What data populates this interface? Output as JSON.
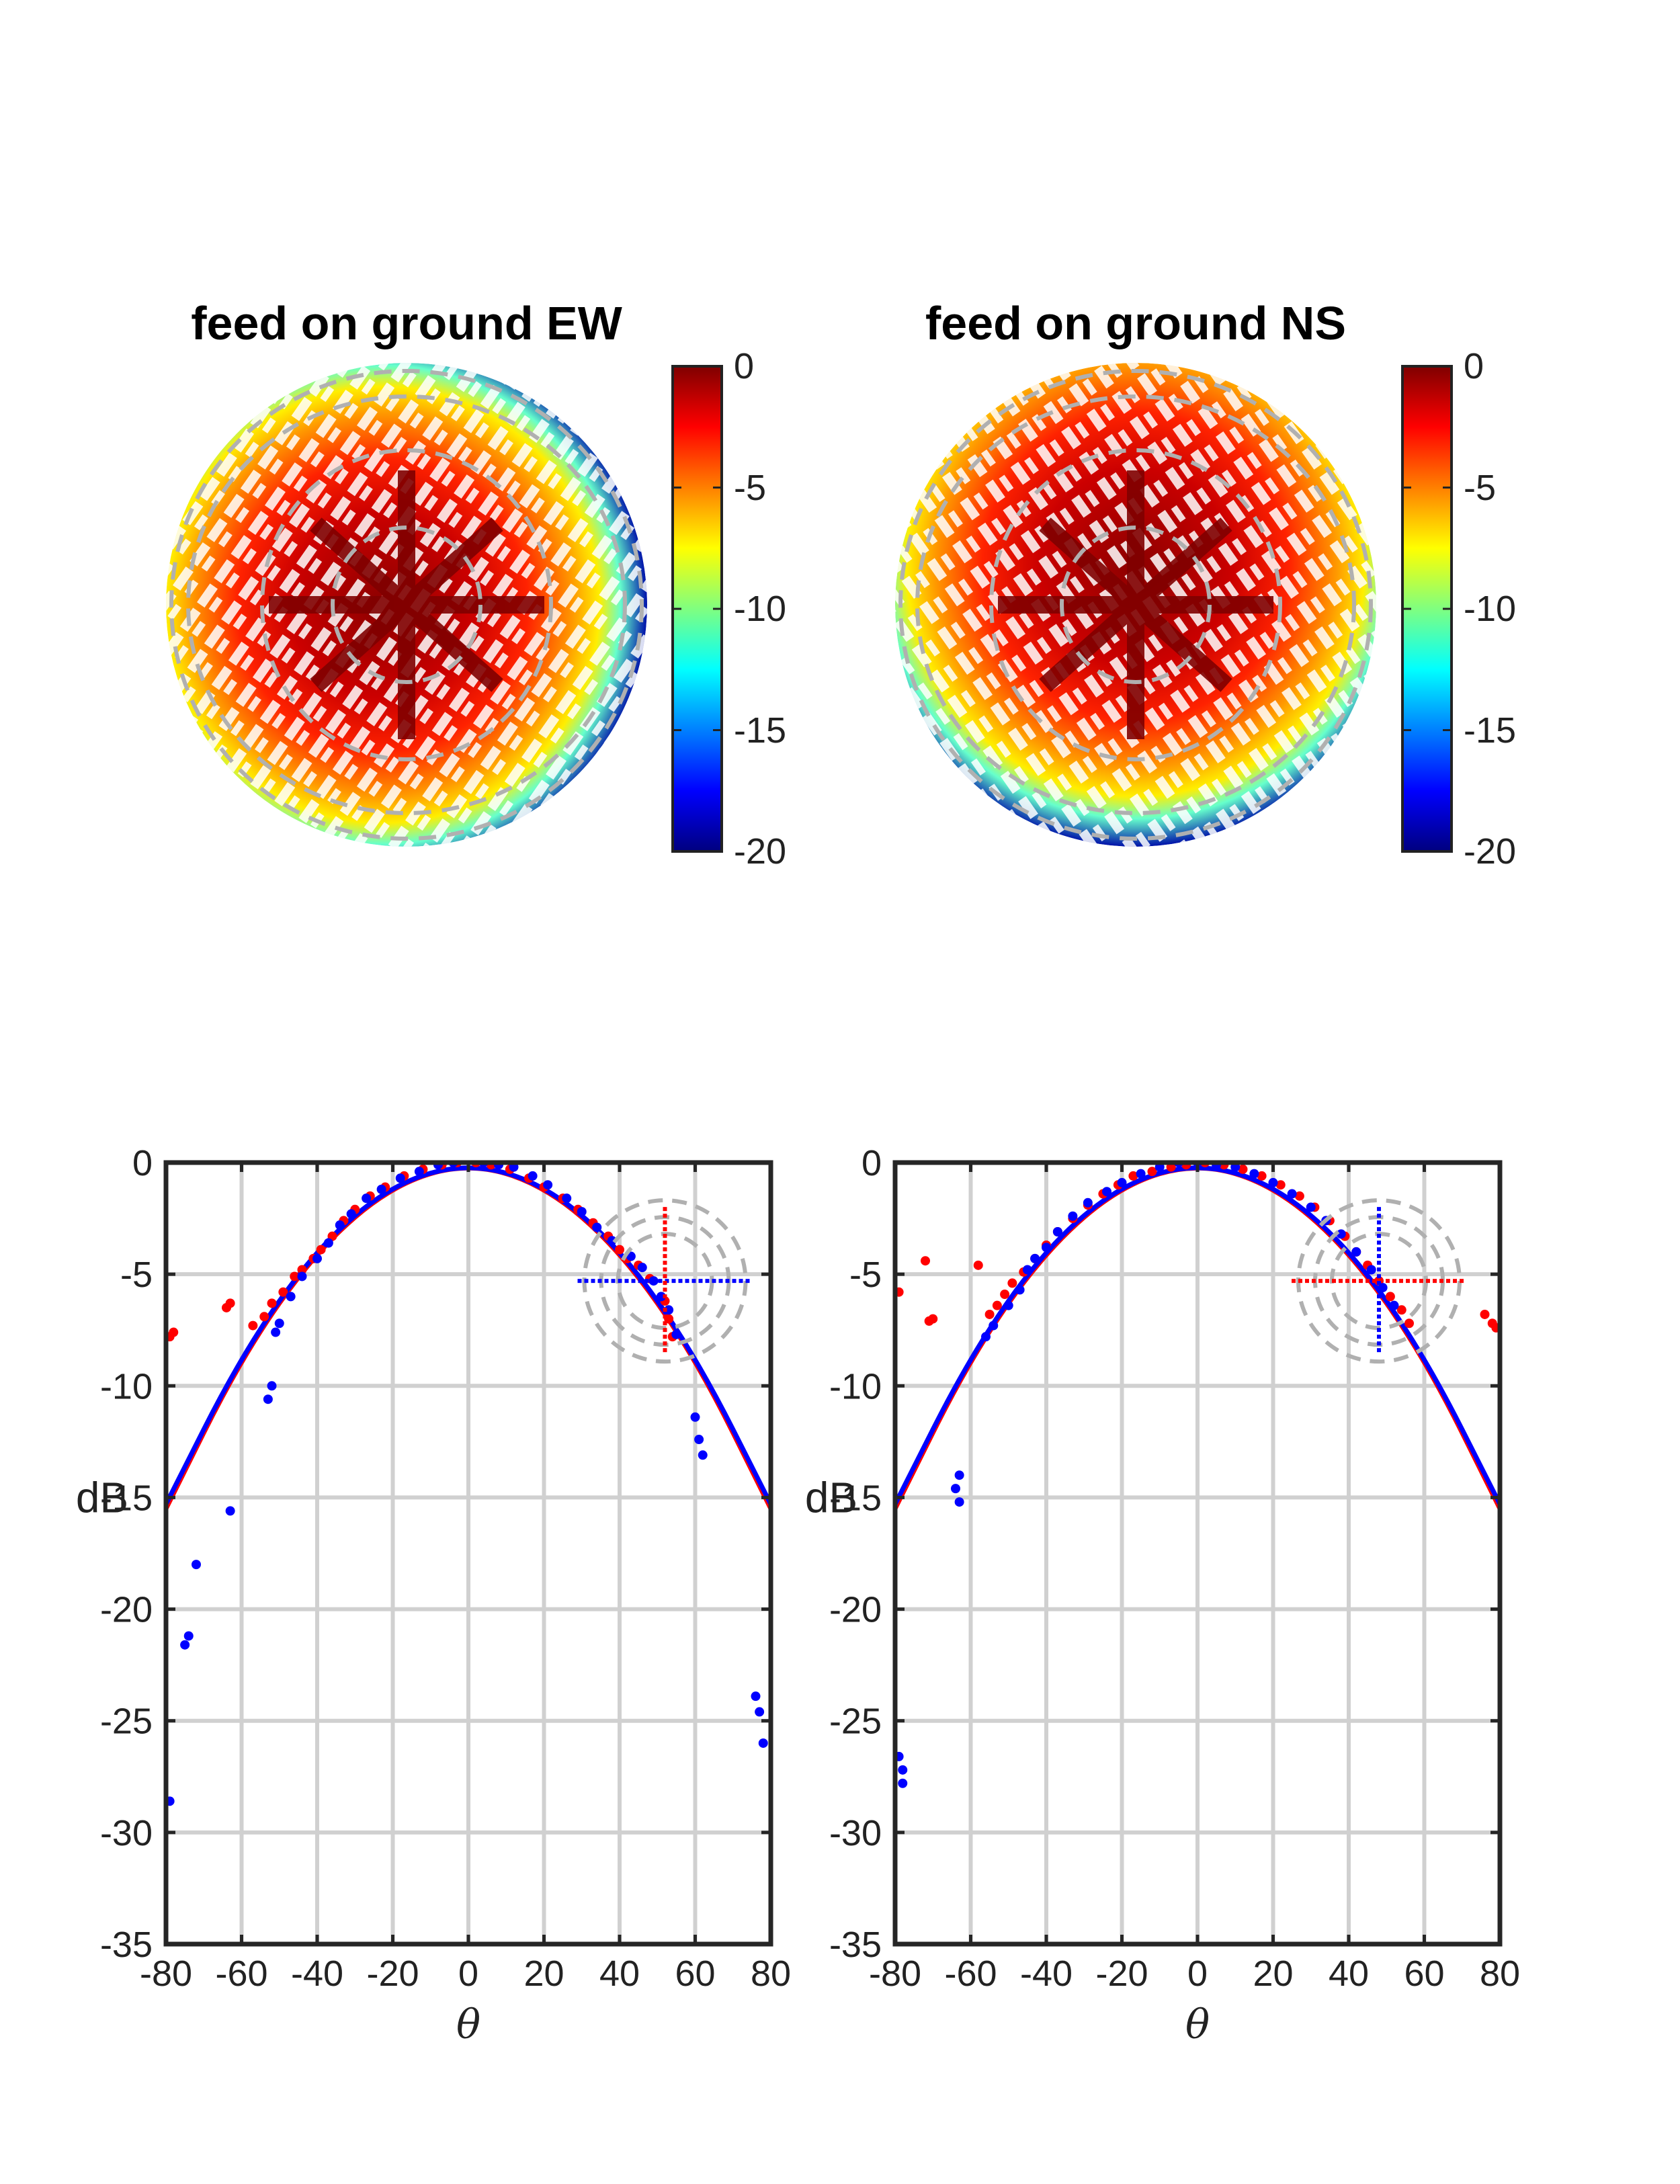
{
  "chart_data": [
    {
      "type": "heatmap",
      "panel": "top-left",
      "title": "feed on ground EW",
      "colorbar": {
        "colormap": "jet",
        "range": [
          -20,
          0
        ],
        "ticks": [
          "0",
          "-5",
          "-10",
          "-15",
          "-20"
        ]
      },
      "hotspot": "central cross-shaped band near 0 dB",
      "low_edge": "left-east"
    },
    {
      "type": "heatmap",
      "panel": "top-right",
      "title": "feed on ground NS",
      "colorbar": {
        "colormap": "jet",
        "range": [
          -20,
          0
        ],
        "ticks": [
          "0",
          "-5",
          "-10",
          "-15",
          "-20"
        ]
      },
      "hotspot": "central cross-shaped band near 0 dB",
      "low_edge": "bottom-south"
    },
    {
      "type": "scatter",
      "panel": "bottom-left",
      "xlabel": "θ",
      "ylabel": "dB",
      "xlim": [
        -80,
        80
      ],
      "ylim": [
        -35,
        0
      ],
      "xticks": [
        "-80",
        "-60",
        "-40",
        "-20",
        "0",
        "20",
        "40",
        "60",
        "80"
      ],
      "yticks": [
        "0",
        "-5",
        "-10",
        "-15",
        "-20",
        "-25",
        "-30",
        "-35"
      ],
      "grid": true,
      "fit_curves": [
        {
          "color": "#ff0000",
          "x": [
            -80,
            -60,
            -40,
            -20,
            0,
            20,
            40,
            60,
            80
          ],
          "y": [
            -15.5,
            -8.7,
            -3.9,
            -1.0,
            0,
            -1.0,
            -3.9,
            -8.7,
            -15.5
          ]
        },
        {
          "color": "#0000ff",
          "x": [
            -80,
            -60,
            -40,
            -20,
            0,
            20,
            40,
            60,
            80
          ],
          "y": [
            -15.3,
            -8.6,
            -3.8,
            -0.95,
            0,
            -0.95,
            -3.8,
            -8.6,
            -15.3
          ]
        }
      ],
      "points": [
        {
          "color": "#ff0000",
          "xy": [
            [
              -79,
              -7.8
            ],
            [
              -78,
              -7.6
            ],
            [
              -64,
              -6.5
            ],
            [
              -63,
              -6.3
            ],
            [
              -57,
              -7.3
            ],
            [
              -54,
              -6.9
            ],
            [
              -52,
              -6.3
            ],
            [
              -49,
              -5.8
            ],
            [
              -46,
              -5.1
            ],
            [
              -44,
              -4.8
            ],
            [
              -41,
              -4.3
            ],
            [
              -39,
              -3.9
            ],
            [
              -36,
              -3.3
            ],
            [
              -33,
              -2.6
            ],
            [
              -30,
              -2.1
            ],
            [
              -26,
              -1.5
            ],
            [
              -22,
              -1.1
            ],
            [
              -17,
              -0.6
            ],
            [
              -12,
              -0.3
            ],
            [
              -7,
              -0.1
            ],
            [
              -3,
              0
            ],
            [
              2,
              0
            ],
            [
              6,
              -0.1
            ],
            [
              11,
              -0.3
            ],
            [
              16,
              -0.7
            ],
            [
              20,
              -1.1
            ],
            [
              25,
              -1.6
            ],
            [
              29,
              -2.1
            ],
            [
              33,
              -2.7
            ],
            [
              37,
              -3.3
            ],
            [
              40,
              -3.9
            ],
            [
              42,
              -4.3
            ],
            [
              45,
              -4.6
            ],
            [
              48,
              -5.2
            ],
            [
              52,
              -6.2
            ],
            [
              53,
              -7.0
            ],
            [
              54,
              -7.8
            ]
          ]
        },
        {
          "color": "#0000ff",
          "xy": [
            [
              -79,
              -28.6
            ],
            [
              -72,
              -18.0
            ],
            [
              -74,
              -21.2
            ],
            [
              -75,
              -21.6
            ],
            [
              -63,
              -15.6
            ],
            [
              -52,
              -10.0
            ],
            [
              -53,
              -10.6
            ],
            [
              -51,
              -7.6
            ],
            [
              -50,
              -7.2
            ],
            [
              -47,
              -6.0
            ],
            [
              -44,
              -5.1
            ],
            [
              -40,
              -4.3
            ],
            [
              -37,
              -3.6
            ],
            [
              -34,
              -2.8
            ],
            [
              -31,
              -2.3
            ],
            [
              -27,
              -1.6
            ],
            [
              -23,
              -1.2
            ],
            [
              -18,
              -0.7
            ],
            [
              -13,
              -0.4
            ],
            [
              -8,
              -0.1
            ],
            [
              -4,
              0
            ],
            [
              4,
              0
            ],
            [
              8,
              -0.1
            ],
            [
              12,
              -0.2
            ],
            [
              17,
              -0.6
            ],
            [
              21,
              -1.0
            ],
            [
              26,
              -1.6
            ],
            [
              30,
              -2.2
            ],
            [
              34,
              -2.9
            ],
            [
              38,
              -3.5
            ],
            [
              43,
              -4.2
            ],
            [
              46,
              -4.7
            ],
            [
              49,
              -5.3
            ],
            [
              51,
              -6.0
            ],
            [
              53,
              -6.6
            ],
            [
              55,
              -7.7
            ],
            [
              60,
              -11.4
            ],
            [
              61,
              -12.4
            ],
            [
              62,
              -13.1
            ],
            [
              76,
              -23.9
            ],
            [
              77,
              -24.6
            ],
            [
              78,
              -26.0
            ]
          ]
        }
      ]
    },
    {
      "type": "scatter",
      "panel": "bottom-right",
      "xlabel": "θ",
      "ylabel": "dB",
      "xlim": [
        -80,
        80
      ],
      "ylim": [
        -35,
        0
      ],
      "xticks": [
        "-80",
        "-60",
        "-40",
        "-20",
        "0",
        "20",
        "40",
        "60",
        "80"
      ],
      "yticks": [
        "0",
        "-5",
        "-10",
        "-15",
        "-20",
        "-25",
        "-30",
        "-35"
      ],
      "grid": true,
      "fit_curves": [
        {
          "color": "#ff0000",
          "x": [
            -80,
            -60,
            -40,
            -20,
            0,
            20,
            40,
            60,
            80
          ],
          "y": [
            -15.5,
            -8.7,
            -3.9,
            -1.0,
            0,
            -1.0,
            -3.9,
            -8.7,
            -15.5
          ]
        },
        {
          "color": "#0000ff",
          "x": [
            -80,
            -60,
            -40,
            -20,
            0,
            20,
            40,
            60,
            80
          ],
          "y": [
            -15.3,
            -8.6,
            -3.8,
            -0.95,
            0,
            -0.95,
            -3.8,
            -8.6,
            -15.3
          ]
        }
      ],
      "points": [
        {
          "color": "#ff0000",
          "xy": [
            [
              -79,
              -5.8
            ],
            [
              -72,
              -4.4
            ],
            [
              -71,
              -7.1
            ],
            [
              -70,
              -7.0
            ],
            [
              -58,
              -4.6
            ],
            [
              -55,
              -6.8
            ],
            [
              -53,
              -6.4
            ],
            [
              -51,
              -5.9
            ],
            [
              -49,
              -5.4
            ],
            [
              -46,
              -4.9
            ],
            [
              -43,
              -4.3
            ],
            [
              -40,
              -3.7
            ],
            [
              -37,
              -3.1
            ],
            [
              -33,
              -2.5
            ],
            [
              -29,
              -1.9
            ],
            [
              -25,
              -1.4
            ],
            [
              -21,
              -1.0
            ],
            [
              -17,
              -0.6
            ],
            [
              -12,
              -0.4
            ],
            [
              -7,
              -0.2
            ],
            [
              -3,
              -0.1
            ],
            [
              2,
              0
            ],
            [
              7,
              -0.1
            ],
            [
              12,
              -0.3
            ],
            [
              17,
              -0.6
            ],
            [
              22,
              -1.0
            ],
            [
              27,
              -1.5
            ],
            [
              31,
              -2.0
            ],
            [
              35,
              -2.6
            ],
            [
              39,
              -3.3
            ],
            [
              42,
              -4.0
            ],
            [
              45,
              -4.6
            ],
            [
              48,
              -5.3
            ],
            [
              51,
              -6.0
            ],
            [
              54,
              -6.6
            ],
            [
              56,
              -7.2
            ],
            [
              76,
              -6.8
            ],
            [
              78,
              -7.2
            ],
            [
              79,
              -7.4
            ]
          ]
        },
        {
          "color": "#0000ff",
          "xy": [
            [
              -79,
              -26.6
            ],
            [
              -78,
              -27.2
            ],
            [
              -78,
              -27.8
            ],
            [
              -64,
              -14.6
            ],
            [
              -63,
              -14.0
            ],
            [
              -63,
              -15.2
            ],
            [
              -56,
              -7.8
            ],
            [
              -54,
              -7.3
            ],
            [
              -50,
              -6.4
            ],
            [
              -47,
              -5.7
            ],
            [
              -45,
              -4.8
            ],
            [
              -43,
              -4.3
            ],
            [
              -40,
              -3.8
            ],
            [
              -37,
              -3.1
            ],
            [
              -33,
              -2.4
            ],
            [
              -29,
              -1.8
            ],
            [
              -24,
              -1.3
            ],
            [
              -20,
              -0.9
            ],
            [
              -15,
              -0.5
            ],
            [
              -10,
              -0.2
            ],
            [
              -5,
              0
            ],
            [
              0,
              0
            ],
            [
              5,
              -0.1
            ],
            [
              10,
              -0.2
            ],
            [
              15,
              -0.5
            ],
            [
              20,
              -0.9
            ],
            [
              25,
              -1.4
            ],
            [
              26,
              0.5
            ],
            [
              27,
              0.4
            ],
            [
              30,
              -2.0
            ],
            [
              34,
              -2.6
            ],
            [
              38,
              -3.2
            ],
            [
              42,
              -4.0
            ],
            [
              46,
              -4.8
            ],
            [
              49,
              -5.6
            ],
            [
              52,
              -6.4
            ]
          ]
        }
      ],
      "insets": true
    }
  ]
}
